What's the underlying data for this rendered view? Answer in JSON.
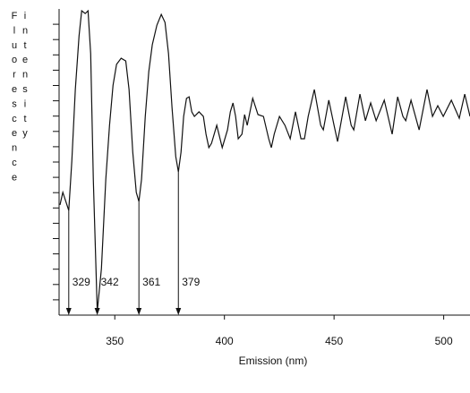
{
  "chart_data": {
    "type": "line",
    "x_label": "Emission (nm)",
    "y_label": "Fluorescence intensity",
    "x": [
      325,
      326.3,
      329,
      330.4,
      332.0,
      333.7,
      334.9,
      336.5,
      337.8,
      339.0,
      340.2,
      342,
      343.9,
      345.9,
      347.6,
      349.2,
      350.8,
      352.9,
      355.0,
      356.5,
      358.2,
      359.8,
      361,
      362.2,
      363.9,
      365.5,
      367.1,
      369.2,
      371.2,
      372.9,
      374.5,
      376.1,
      377.8,
      379,
      380.2,
      381.4,
      382.7,
      383.9,
      385.1,
      386.3,
      388.4,
      390.4,
      391.6,
      392.9,
      394.1,
      396.5,
      399.0,
      401.4,
      402.7,
      403.9,
      405.1,
      406.3,
      408.0,
      409.2,
      410.4,
      412.9,
      415.3,
      417.8,
      420.2,
      421.4,
      422.7,
      425.1,
      427.6,
      430.0,
      432.4,
      434.9,
      436.5,
      438.2,
      441.0,
      443.9,
      445.1,
      447.6,
      450.0,
      451.6,
      455.3,
      457.8,
      459.0,
      461.8,
      464.3,
      466.7,
      469.2,
      472.9,
      476.5,
      479.0,
      481.4,
      482.7,
      485.1,
      488.8,
      492.4,
      494.9,
      497.3,
      499.8,
      503.5,
      507.1,
      509.6,
      512.0
    ],
    "series": [
      {
        "color": "#111111",
        "values": [
          36,
          40.1,
          34.2,
          50.3,
          73.7,
          91.2,
          99.4,
          98.5,
          99.4,
          85.4,
          44.4,
          1.2,
          15.2,
          44.4,
          62.0,
          75.1,
          81.9,
          83.9,
          83.0,
          73.7,
          53.2,
          40.1,
          37.1,
          44.4,
          64.9,
          79.5,
          88.3,
          94.7,
          98.2,
          95.6,
          85.4,
          67.8,
          51.8,
          46.8,
          53.2,
          64.9,
          70.8,
          71.3,
          66.4,
          64.9,
          66.4,
          64.9,
          59.1,
          54.7,
          56.1,
          62.0,
          54.7,
          60.5,
          66.4,
          69.3,
          64.9,
          57.6,
          59.1,
          65.5,
          62.0,
          70.8,
          65.5,
          64.9,
          57.6,
          54.7,
          59.1,
          64.9,
          62.0,
          57.6,
          66.4,
          57.6,
          57.6,
          64.9,
          73.7,
          62.0,
          60.5,
          70.2,
          62.0,
          56.7,
          71.3,
          62.0,
          60.5,
          72.2,
          63.5,
          69.3,
          63.5,
          70.2,
          59.1,
          71.3,
          64.9,
          63.5,
          70.2,
          60.5,
          73.7,
          64.9,
          68.4,
          64.9,
          70.2,
          64.3,
          72.2,
          64.9
        ]
      }
    ],
    "xlim": [
      325,
      512
    ],
    "xticks": [
      350,
      400,
      450,
      500
    ],
    "ylim": [
      0,
      100
    ],
    "yticks": [
      5,
      10,
      15,
      20,
      25,
      30,
      35,
      40,
      45,
      50,
      55,
      60,
      65,
      70,
      75,
      80,
      85,
      90,
      95
    ],
    "annotations": [
      329,
      342,
      361,
      379
    ]
  }
}
